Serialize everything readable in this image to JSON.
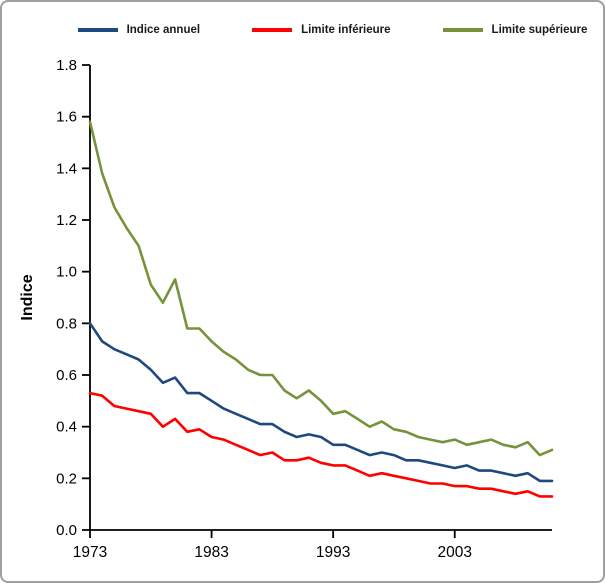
{
  "chart_data": {
    "type": "line",
    "title": "",
    "xlabel": "",
    "ylabel": "Indice",
    "xlim": [
      1973,
      2011
    ],
    "ylim": [
      0,
      1.8
    ],
    "xticks": [
      1973,
      1983,
      1993,
      2003
    ],
    "ytick_labels": [
      "0.0",
      "0.2",
      "0.4",
      "0.6",
      "0.8",
      "1.0",
      "1.2",
      "1.4",
      "1.6",
      "1.8"
    ],
    "grid": false,
    "legend_position": "top",
    "x": [
      1973,
      1974,
      1975,
      1976,
      1977,
      1978,
      1979,
      1980,
      1981,
      1982,
      1983,
      1984,
      1985,
      1986,
      1987,
      1988,
      1989,
      1990,
      1991,
      1992,
      1993,
      1994,
      1995,
      1996,
      1997,
      1998,
      1999,
      2000,
      2001,
      2002,
      2003,
      2004,
      2005,
      2006,
      2007,
      2008,
      2009,
      2010,
      2011
    ],
    "series": [
      {
        "name": "Indice annuel",
        "color": "#1F497D",
        "values": [
          0.8,
          0.73,
          0.7,
          0.68,
          0.66,
          0.62,
          0.57,
          0.59,
          0.53,
          0.53,
          0.5,
          0.47,
          0.45,
          0.43,
          0.41,
          0.41,
          0.38,
          0.36,
          0.37,
          0.36,
          0.33,
          0.33,
          0.31,
          0.29,
          0.3,
          0.29,
          0.27,
          0.27,
          0.26,
          0.25,
          0.24,
          0.25,
          0.23,
          0.23,
          0.22,
          0.21,
          0.22,
          0.19,
          0.19
        ]
      },
      {
        "name": "Limite inférieure",
        "color": "#FF0000",
        "values": [
          0.53,
          0.52,
          0.48,
          0.47,
          0.46,
          0.45,
          0.4,
          0.43,
          0.38,
          0.39,
          0.36,
          0.35,
          0.33,
          0.31,
          0.29,
          0.3,
          0.27,
          0.27,
          0.28,
          0.26,
          0.25,
          0.25,
          0.23,
          0.21,
          0.22,
          0.21,
          0.2,
          0.19,
          0.18,
          0.18,
          0.17,
          0.17,
          0.16,
          0.16,
          0.15,
          0.14,
          0.15,
          0.13,
          0.13
        ]
      },
      {
        "name": "Limite supérieure",
        "color": "#76933C",
        "values": [
          1.58,
          1.38,
          1.25,
          1.17,
          1.1,
          0.95,
          0.88,
          0.97,
          0.78,
          0.78,
          0.73,
          0.69,
          0.66,
          0.62,
          0.6,
          0.6,
          0.54,
          0.51,
          0.54,
          0.5,
          0.45,
          0.46,
          0.43,
          0.4,
          0.42,
          0.39,
          0.38,
          0.36,
          0.35,
          0.34,
          0.35,
          0.33,
          0.34,
          0.35,
          0.33,
          0.32,
          0.34,
          0.29,
          0.31
        ]
      }
    ]
  }
}
